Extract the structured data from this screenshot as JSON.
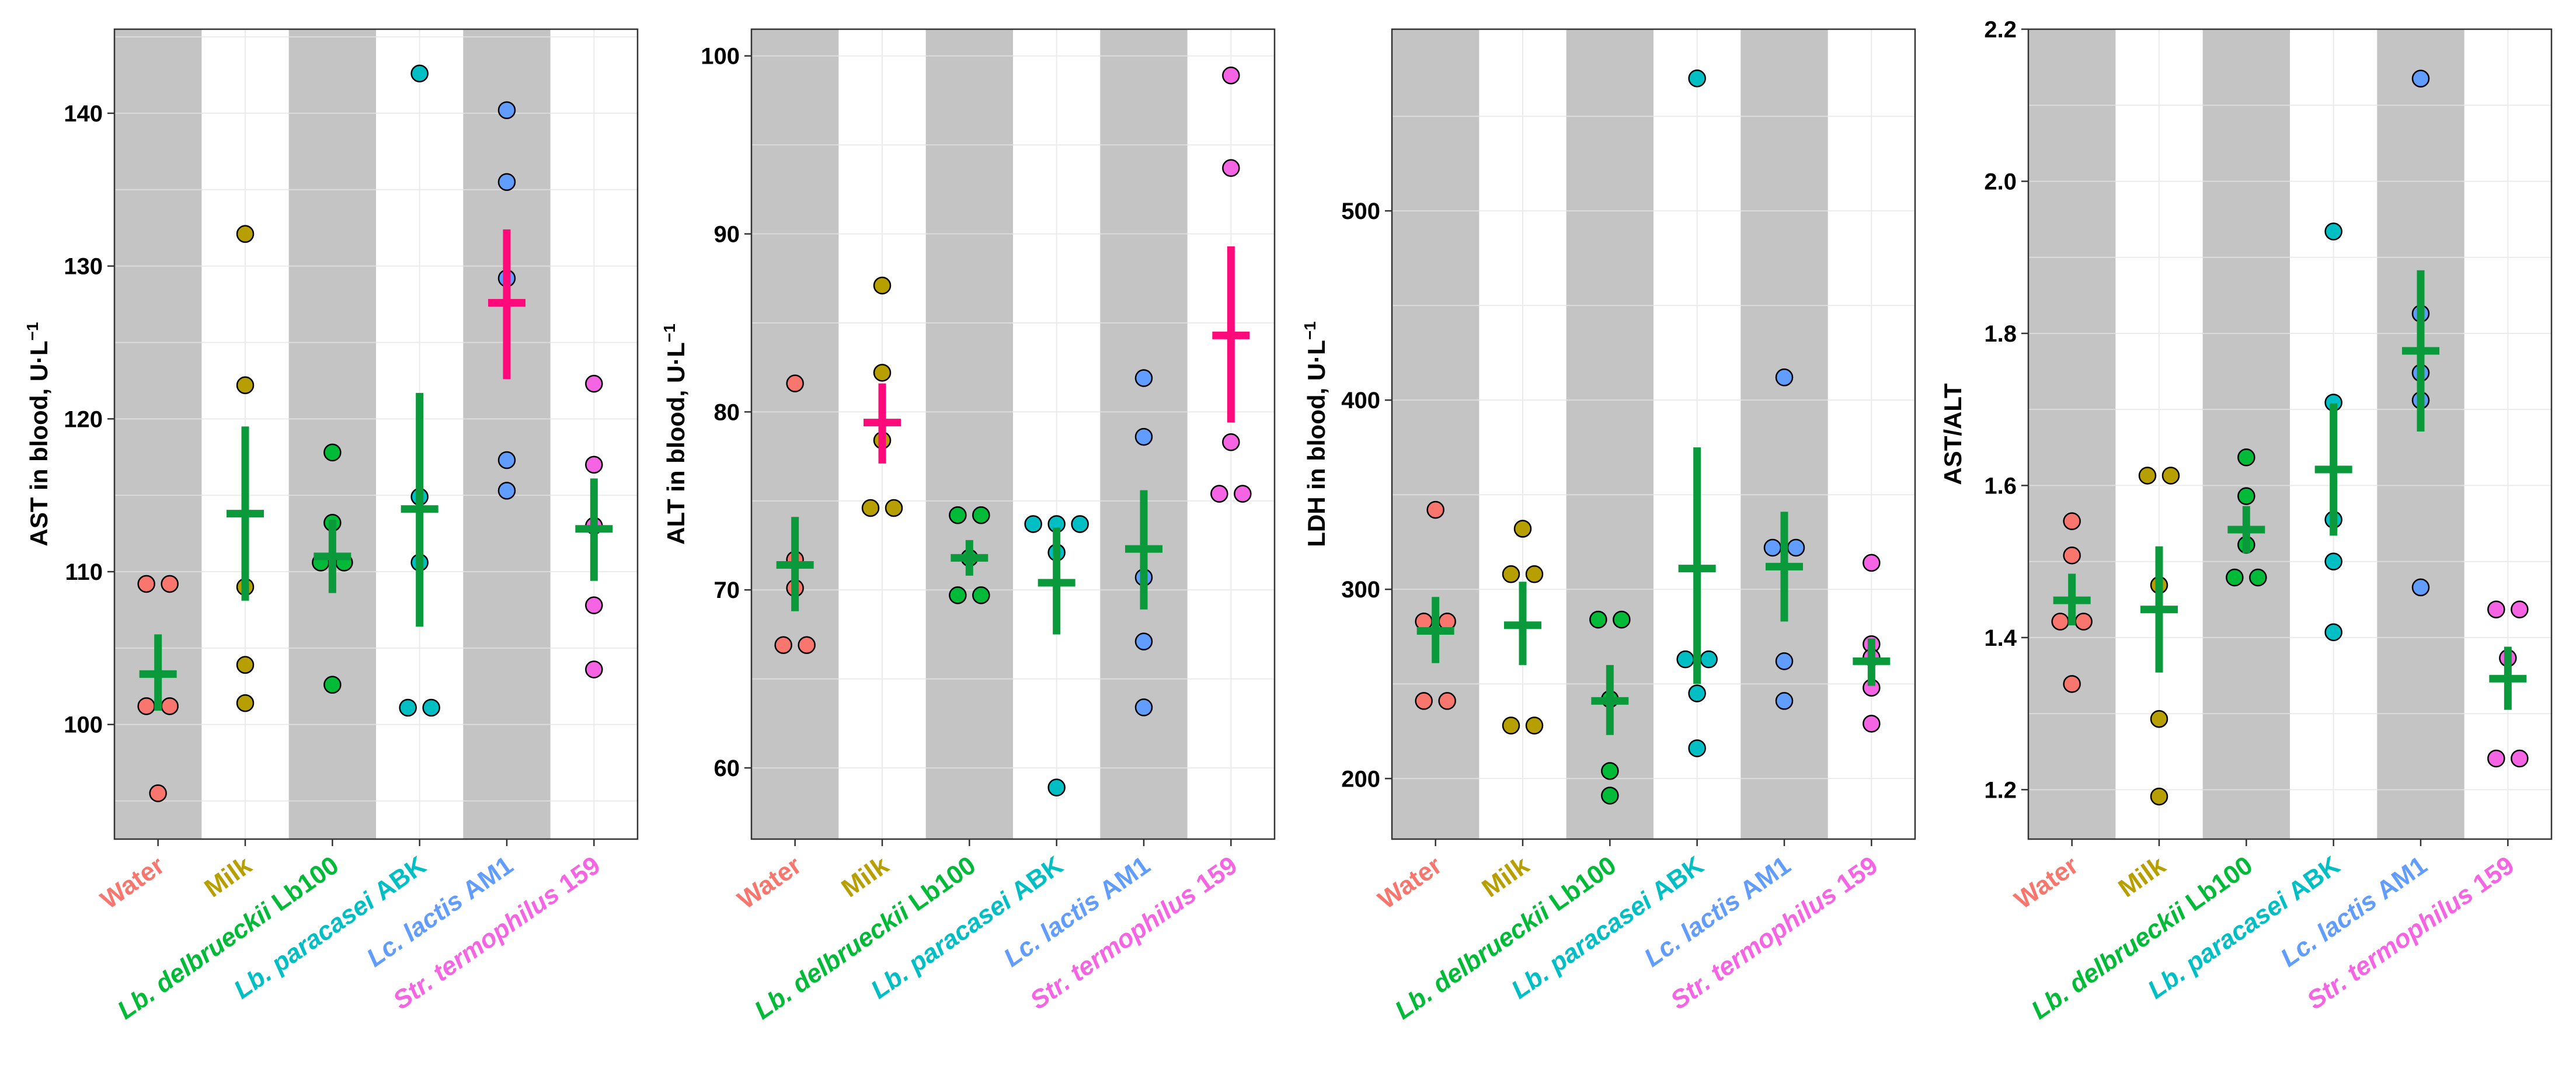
{
  "colors": {
    "Water": "#f8766d",
    "Milk": "#b79f00",
    "Lb100": "#00ba38",
    "ABK": "#00bfc4",
    "AM1": "#619cff",
    "St159": "#f564e3",
    "mean_normal": "#0a9a3c",
    "mean_highlight": "#ff0a7a",
    "band": "#c4c4c4",
    "grid_on_band": "#dcdcdc",
    "grid_on_white": "#ebebeb"
  },
  "chart_data": [
    {
      "type": "scatter",
      "id": "ast",
      "ylabel": "AST in blood, U·L⁻¹",
      "ylabel_main": "AST in blood, U·L",
      "ylabel_sup": "−1",
      "ylim": [
        92.5,
        145.5
      ],
      "yticks": [
        100,
        110,
        120,
        130,
        140
      ],
      "yticklabels": [
        "100",
        "110",
        "120",
        "130",
        "140"
      ],
      "groups": [
        {
          "key": "Water",
          "category": "Water",
          "points": [
            109.2,
            109.2,
            101.2,
            101.2,
            95.5
          ],
          "mean": 103.3,
          "err_low": 100.9,
          "err_high": 105.9,
          "highlight": false
        },
        {
          "key": "Milk",
          "category": "Milk",
          "points": [
            132.1,
            122.2,
            109.0,
            103.9,
            101.4
          ],
          "mean": 113.8,
          "err_low": 108.1,
          "err_high": 119.5,
          "highlight": false
        },
        {
          "key": "Lb100",
          "category": "Lb. delbrueckii Lb100",
          "points": [
            117.8,
            113.2,
            110.6,
            110.6,
            102.6
          ],
          "mean": 111.0,
          "err_low": 108.6,
          "err_high": 113.4,
          "highlight": false
        },
        {
          "key": "ABK",
          "category": "Lb. paracasei ABK",
          "points": [
            142.6,
            114.9,
            110.6,
            101.1,
            101.1
          ],
          "mean": 114.1,
          "err_low": 106.4,
          "err_high": 121.7,
          "highlight": false
        },
        {
          "key": "AM1",
          "category": "Lc. lactis AM1",
          "points": [
            140.2,
            135.5,
            129.2,
            117.3,
            115.3
          ],
          "mean": 127.6,
          "err_low": 122.6,
          "err_high": 132.4,
          "highlight": true
        },
        {
          "key": "St159",
          "category": "Str. termophilus 159",
          "points": [
            122.3,
            117.0,
            113.0,
            107.8,
            103.6
          ],
          "mean": 112.8,
          "err_low": 109.4,
          "err_high": 116.1,
          "highlight": false
        }
      ]
    },
    {
      "type": "scatter",
      "id": "alt",
      "ylabel": "ALT in blood, U·L⁻¹",
      "ylabel_main": "ALT in blood, U·L",
      "ylabel_sup": "−1",
      "ylim": [
        56.0,
        101.5
      ],
      "yticks": [
        60,
        70,
        80,
        90,
        100
      ],
      "yticklabels": [
        "60",
        "70",
        "80",
        "90",
        "100"
      ],
      "groups": [
        {
          "key": "Water",
          "category": "Water",
          "points": [
            81.6,
            71.7,
            70.1,
            66.9,
            66.9
          ],
          "mean": 71.4,
          "err_low": 68.8,
          "err_high": 74.1,
          "highlight": false
        },
        {
          "key": "Milk",
          "category": "Milk",
          "points": [
            87.1,
            82.2,
            78.4,
            74.6,
            74.6
          ],
          "mean": 79.4,
          "err_low": 77.1,
          "err_high": 81.6,
          "highlight": true
        },
        {
          "key": "Lb100",
          "category": "Lb. delbrueckii Lb100",
          "points": [
            74.2,
            74.2,
            71.8,
            69.7,
            69.7
          ],
          "mean": 71.8,
          "err_low": 70.8,
          "err_high": 72.8,
          "highlight": false
        },
        {
          "key": "ABK",
          "category": "Lb. paracasei ABK",
          "points": [
            73.7,
            73.7,
            73.7,
            72.1,
            58.9
          ],
          "mean": 70.4,
          "err_low": 67.5,
          "err_high": 73.5,
          "highlight": false
        },
        {
          "key": "AM1",
          "category": "Lc. lactis AM1",
          "points": [
            81.9,
            78.6,
            70.7,
            67.1,
            63.4
          ],
          "mean": 72.3,
          "err_low": 68.9,
          "err_high": 75.6,
          "highlight": false
        },
        {
          "key": "St159",
          "category": "Str. termophilus 159",
          "points": [
            98.9,
            93.7,
            78.3,
            75.4,
            75.4
          ],
          "mean": 84.3,
          "err_low": 79.4,
          "err_high": 89.3,
          "highlight": true
        }
      ]
    },
    {
      "type": "scatter",
      "id": "ldh",
      "ylabel": "LDH in blood, U·L⁻¹",
      "ylabel_main": "LDH in blood, U·L",
      "ylabel_sup": "−1",
      "ylim": [
        168,
        596
      ],
      "yticks": [
        200,
        300,
        400,
        500
      ],
      "yticklabels": [
        "200",
        "300",
        "400",
        "500"
      ],
      "groups": [
        {
          "key": "Water",
          "category": "Water",
          "points": [
            342,
            283,
            283,
            241,
            241
          ],
          "mean": 278,
          "err_low": 261,
          "err_high": 296,
          "highlight": false
        },
        {
          "key": "Milk",
          "category": "Milk",
          "points": [
            332,
            308,
            308,
            228,
            228
          ],
          "mean": 281,
          "err_low": 260,
          "err_high": 304,
          "highlight": false
        },
        {
          "key": "Lb100",
          "category": "Lb. delbrueckii Lb100",
          "points": [
            284,
            284,
            242,
            204,
            191
          ],
          "mean": 241,
          "err_low": 223,
          "err_high": 260,
          "highlight": false
        },
        {
          "key": "ABK",
          "category": "Lb. paracasei ABK",
          "points": [
            570,
            263,
            263,
            245,
            216
          ],
          "mean": 311,
          "err_low": 250,
          "err_high": 375,
          "highlight": false
        },
        {
          "key": "AM1",
          "category": "Lc. lactis AM1",
          "points": [
            412,
            322,
            322,
            262,
            241
          ],
          "mean": 312,
          "err_low": 283,
          "err_high": 341,
          "highlight": false
        },
        {
          "key": "St159",
          "category": "Str. termophilus 159",
          "points": [
            314,
            271,
            264,
            248,
            229
          ],
          "mean": 262,
          "err_low": 249,
          "err_high": 274,
          "highlight": false
        }
      ]
    },
    {
      "type": "scatter",
      "id": "ratio",
      "ylabel": "AST/ALT",
      "ylabel_main": "AST/ALT",
      "ylabel_sup": "",
      "ylim": [
        1.135,
        2.2
      ],
      "yticks": [
        1.2,
        1.4,
        1.6,
        1.8,
        2.0,
        2.2
      ],
      "yticklabels": [
        "1.2",
        "1.4",
        "1.6",
        "1.8",
        "2.0",
        "2.2"
      ],
      "groups": [
        {
          "key": "Water",
          "category": "Water",
          "points": [
            1.553,
            1.508,
            1.421,
            1.421,
            1.339
          ],
          "mean": 1.449,
          "err_low": 1.416,
          "err_high": 1.484,
          "highlight": false
        },
        {
          "key": "Milk",
          "category": "Milk",
          "points": [
            1.613,
            1.613,
            1.469,
            1.293,
            1.191
          ],
          "mean": 1.437,
          "err_low": 1.354,
          "err_high": 1.52,
          "highlight": false
        },
        {
          "key": "Lb100",
          "category": "Lb. delbrueckii Lb100",
          "points": [
            1.637,
            1.586,
            1.522,
            1.479,
            1.479
          ],
          "mean": 1.542,
          "err_low": 1.511,
          "err_high": 1.573,
          "highlight": false
        },
        {
          "key": "ABK",
          "category": "Lb. paracasei ABK",
          "points": [
            1.934,
            1.709,
            1.555,
            1.5,
            1.407
          ],
          "mean": 1.621,
          "err_low": 1.534,
          "err_high": 1.708,
          "highlight": false
        },
        {
          "key": "AM1",
          "category": "Lc. lactis AM1",
          "points": [
            2.135,
            1.826,
            1.748,
            1.712,
            1.466
          ],
          "mean": 1.777,
          "err_low": 1.671,
          "err_high": 1.883,
          "highlight": false
        },
        {
          "key": "St159",
          "category": "Str. termophilus 159",
          "points": [
            1.437,
            1.437,
            1.373,
            1.241,
            1.241
          ],
          "mean": 1.346,
          "err_low": 1.305,
          "err_high": 1.388,
          "highlight": false
        }
      ]
    }
  ]
}
